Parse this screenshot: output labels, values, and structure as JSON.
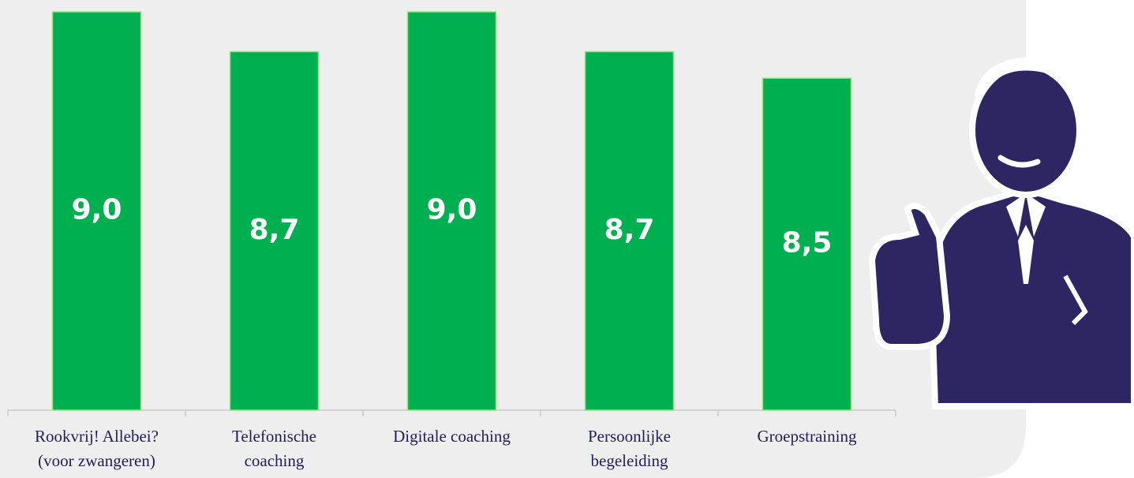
{
  "chart_data": {
    "type": "bar",
    "categories": [
      [
        "Rookvrij! Allebei?",
        "(voor zwangeren)"
      ],
      [
        "Telefonische",
        "coaching"
      ],
      [
        "Digitale coaching"
      ],
      [
        "Persoonlijke",
        "begeleiding"
      ],
      [
        "Groepstraining"
      ]
    ],
    "values": [
      9.0,
      8.7,
      9.0,
      8.7,
      8.5
    ],
    "value_labels": [
      "9,0",
      "8,7",
      "9,0",
      "8,7",
      "8,5"
    ],
    "color": "#00b050",
    "ylim": [
      6,
      9
    ]
  }
}
